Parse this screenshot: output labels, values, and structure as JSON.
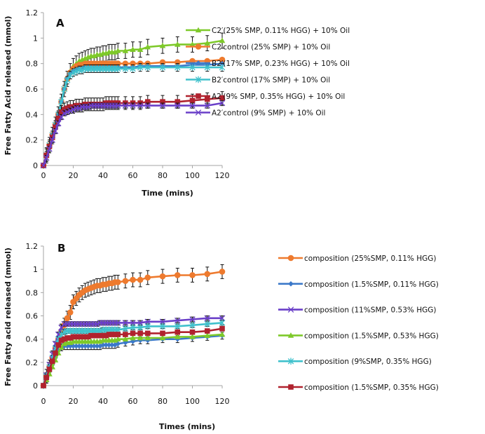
{
  "chart_data": [
    {
      "type": "line",
      "panel_label": "A",
      "title": "",
      "xlabel": "Time  (mins)",
      "ylabel": "Free Fatty Acid released  (mmol)",
      "xlim": [
        0,
        120
      ],
      "ylim": [
        0,
        1.2
      ],
      "xticks": [
        0,
        20,
        40,
        60,
        80,
        100,
        120
      ],
      "yticks": [
        0,
        0.2,
        0.4,
        0.6,
        0.8,
        1,
        1.2
      ],
      "ytick_labels": [
        "0",
        "0.2",
        "0.4",
        "0.6",
        "0.8",
        "1",
        "1.2"
      ],
      "grid": false,
      "legend_position": "right",
      "x": [
        0,
        2,
        4,
        6,
        8,
        10,
        12,
        14,
        16,
        18,
        20,
        22,
        24,
        26,
        28,
        30,
        32,
        34,
        36,
        38,
        40,
        42,
        44,
        46,
        48,
        50,
        55,
        60,
        65,
        70,
        80,
        90,
        100,
        110,
        120
      ],
      "series": [
        {
          "name": "C2′(25% SMP, 0.11% HGG) + 10% Oil",
          "color": "#7ec92a",
          "marker": "triangle",
          "values": [
            0,
            0.08,
            0.16,
            0.24,
            0.32,
            0.4,
            0.5,
            0.6,
            0.68,
            0.74,
            0.78,
            0.8,
            0.82,
            0.83,
            0.84,
            0.85,
            0.86,
            0.86,
            0.87,
            0.87,
            0.88,
            0.88,
            0.89,
            0.89,
            0.89,
            0.9,
            0.9,
            0.91,
            0.91,
            0.93,
            0.94,
            0.95,
            0.95,
            0.96,
            0.98
          ],
          "error": 0.06
        },
        {
          "name": "C2′control (25% SMP) + 10% Oil",
          "color": "#ee7a2e",
          "marker": "circle",
          "values": [
            0,
            0.08,
            0.16,
            0.24,
            0.32,
            0.4,
            0.5,
            0.6,
            0.68,
            0.73,
            0.76,
            0.78,
            0.79,
            0.79,
            0.8,
            0.8,
            0.8,
            0.8,
            0.8,
            0.8,
            0.8,
            0.8,
            0.8,
            0.8,
            0.8,
            0.8,
            0.8,
            0.8,
            0.8,
            0.8,
            0.81,
            0.81,
            0.82,
            0.82,
            0.83
          ],
          "error": 0
        },
        {
          "name": "B2′(17% SMP, 0.23% HGG) + 10% Oil",
          "color": "#3b78c9",
          "marker": "diamond",
          "values": [
            0,
            0.08,
            0.16,
            0.24,
            0.32,
            0.4,
            0.5,
            0.6,
            0.68,
            0.72,
            0.74,
            0.75,
            0.76,
            0.76,
            0.77,
            0.77,
            0.77,
            0.77,
            0.77,
            0.77,
            0.77,
            0.77,
            0.77,
            0.77,
            0.77,
            0.77,
            0.77,
            0.77,
            0.78,
            0.78,
            0.78,
            0.78,
            0.79,
            0.79,
            0.8
          ],
          "error": 0
        },
        {
          "name": "B2′control (17% SMP) + 10% Oil",
          "color": "#3fc1cc",
          "marker": "star",
          "values": [
            0,
            0.08,
            0.16,
            0.24,
            0.32,
            0.4,
            0.5,
            0.6,
            0.67,
            0.71,
            0.73,
            0.74,
            0.75,
            0.75,
            0.76,
            0.76,
            0.76,
            0.76,
            0.76,
            0.76,
            0.76,
            0.76,
            0.76,
            0.76,
            0.76,
            0.76,
            0.76,
            0.76,
            0.77,
            0.77,
            0.77,
            0.77,
            0.77,
            0.77,
            0.77
          ],
          "error": 0.03
        },
        {
          "name": "A2′(9% SMP, 0.35% HGG) + 10% Oil",
          "color": "#b0222e",
          "marker": "square",
          "values": [
            0,
            0.08,
            0.15,
            0.22,
            0.3,
            0.37,
            0.42,
            0.44,
            0.45,
            0.46,
            0.46,
            0.47,
            0.47,
            0.47,
            0.48,
            0.48,
            0.48,
            0.48,
            0.48,
            0.48,
            0.48,
            0.49,
            0.49,
            0.49,
            0.49,
            0.49,
            0.49,
            0.49,
            0.49,
            0.5,
            0.5,
            0.5,
            0.51,
            0.52,
            0.53
          ],
          "error": 0.05
        },
        {
          "name": "A2′control (9% SMP) + 10% Oil",
          "color": "#6a3fc8",
          "marker": "x",
          "values": [
            0,
            0.06,
            0.13,
            0.2,
            0.27,
            0.33,
            0.38,
            0.41,
            0.42,
            0.43,
            0.44,
            0.45,
            0.45,
            0.46,
            0.46,
            0.46,
            0.47,
            0.47,
            0.47,
            0.47,
            0.47,
            0.47,
            0.47,
            0.47,
            0.47,
            0.47,
            0.47,
            0.47,
            0.47,
            0.47,
            0.47,
            0.47,
            0.47,
            0.47,
            0.49
          ],
          "error": 0.02
        }
      ]
    },
    {
      "type": "line",
      "panel_label": "B",
      "title": "",
      "xlabel": "Times (mins)",
      "ylabel": "Free Fatty acid released  (mmol)",
      "xlim": [
        0,
        120
      ],
      "ylim": [
        0,
        1.2
      ],
      "xticks": [
        0,
        20,
        40,
        60,
        80,
        100,
        120
      ],
      "yticks": [
        0,
        0.2,
        0.4,
        0.6,
        0.8,
        1,
        1.2
      ],
      "ytick_labels": [
        "0",
        "0.2",
        "0.4",
        "0.6",
        "0.8",
        "1",
        "1.2"
      ],
      "grid": false,
      "legend_position": "right",
      "x": [
        0,
        2,
        4,
        6,
        8,
        10,
        12,
        14,
        16,
        18,
        20,
        22,
        24,
        26,
        28,
        30,
        32,
        34,
        36,
        38,
        40,
        42,
        44,
        46,
        48,
        50,
        55,
        60,
        65,
        70,
        80,
        90,
        100,
        110,
        120
      ],
      "series": [
        {
          "name": "composition (25%SMP, 0.11% HGG)",
          "color": "#ee7a2e",
          "marker": "circle",
          "values": [
            0,
            0.08,
            0.16,
            0.24,
            0.32,
            0.4,
            0.47,
            0.52,
            0.58,
            0.63,
            0.72,
            0.75,
            0.78,
            0.8,
            0.82,
            0.83,
            0.84,
            0.85,
            0.86,
            0.86,
            0.87,
            0.87,
            0.88,
            0.88,
            0.89,
            0.89,
            0.9,
            0.91,
            0.91,
            0.93,
            0.94,
            0.95,
            0.95,
            0.96,
            0.98
          ],
          "error": 0.06
        },
        {
          "name": "composition (1.5%SMP, 0.11% HGG)",
          "color": "#3b78c9",
          "marker": "diamond",
          "values": [
            0,
            0.06,
            0.12,
            0.18,
            0.24,
            0.3,
            0.33,
            0.34,
            0.34,
            0.34,
            0.34,
            0.34,
            0.34,
            0.34,
            0.34,
            0.34,
            0.34,
            0.34,
            0.34,
            0.34,
            0.35,
            0.35,
            0.35,
            0.35,
            0.35,
            0.36,
            0.37,
            0.38,
            0.39,
            0.39,
            0.4,
            0.4,
            0.41,
            0.42,
            0.43
          ],
          "error": 0.03
        },
        {
          "name": "composition (11%SMP, 0.53% HGG)",
          "color": "#6a3fc8",
          "marker": "x",
          "values": [
            0,
            0.09,
            0.18,
            0.27,
            0.36,
            0.44,
            0.5,
            0.53,
            0.53,
            0.53,
            0.53,
            0.53,
            0.53,
            0.53,
            0.53,
            0.53,
            0.53,
            0.53,
            0.53,
            0.54,
            0.54,
            0.54,
            0.54,
            0.54,
            0.54,
            0.54,
            0.54,
            0.54,
            0.54,
            0.55,
            0.55,
            0.56,
            0.57,
            0.58,
            0.58
          ],
          "error": 0.02
        },
        {
          "name": "composition (1.5%SMP, 0.53% HGG)",
          "color": "#7ec92a",
          "marker": "triangle",
          "values": [
            0,
            0.05,
            0.1,
            0.16,
            0.22,
            0.28,
            0.33,
            0.36,
            0.37,
            0.37,
            0.38,
            0.38,
            0.38,
            0.38,
            0.38,
            0.38,
            0.38,
            0.38,
            0.38,
            0.38,
            0.39,
            0.39,
            0.39,
            0.39,
            0.39,
            0.4,
            0.4,
            0.41,
            0.41,
            0.41,
            0.41,
            0.42,
            0.42,
            0.43,
            0.44
          ],
          "error": 0
        },
        {
          "name": "composition (9%SMP, 0.35% HGG)",
          "color": "#3fc1cc",
          "marker": "star",
          "values": [
            0,
            0.08,
            0.16,
            0.24,
            0.32,
            0.4,
            0.44,
            0.46,
            0.47,
            0.47,
            0.47,
            0.47,
            0.47,
            0.47,
            0.47,
            0.47,
            0.47,
            0.47,
            0.47,
            0.47,
            0.48,
            0.48,
            0.48,
            0.48,
            0.48,
            0.48,
            0.49,
            0.5,
            0.5,
            0.51,
            0.51,
            0.51,
            0.52,
            0.53,
            0.54
          ],
          "error": 0.02
        },
        {
          "name": "composition (1.5%SMP, 0.35% HGG)",
          "color": "#b0222e",
          "marker": "square",
          "values": [
            0,
            0.07,
            0.14,
            0.21,
            0.28,
            0.35,
            0.39,
            0.4,
            0.41,
            0.41,
            0.42,
            0.42,
            0.42,
            0.42,
            0.42,
            0.42,
            0.43,
            0.43,
            0.43,
            0.43,
            0.43,
            0.43,
            0.44,
            0.44,
            0.44,
            0.44,
            0.44,
            0.45,
            0.45,
            0.45,
            0.45,
            0.46,
            0.46,
            0.47,
            0.49
          ],
          "error": 0
        }
      ]
    }
  ]
}
